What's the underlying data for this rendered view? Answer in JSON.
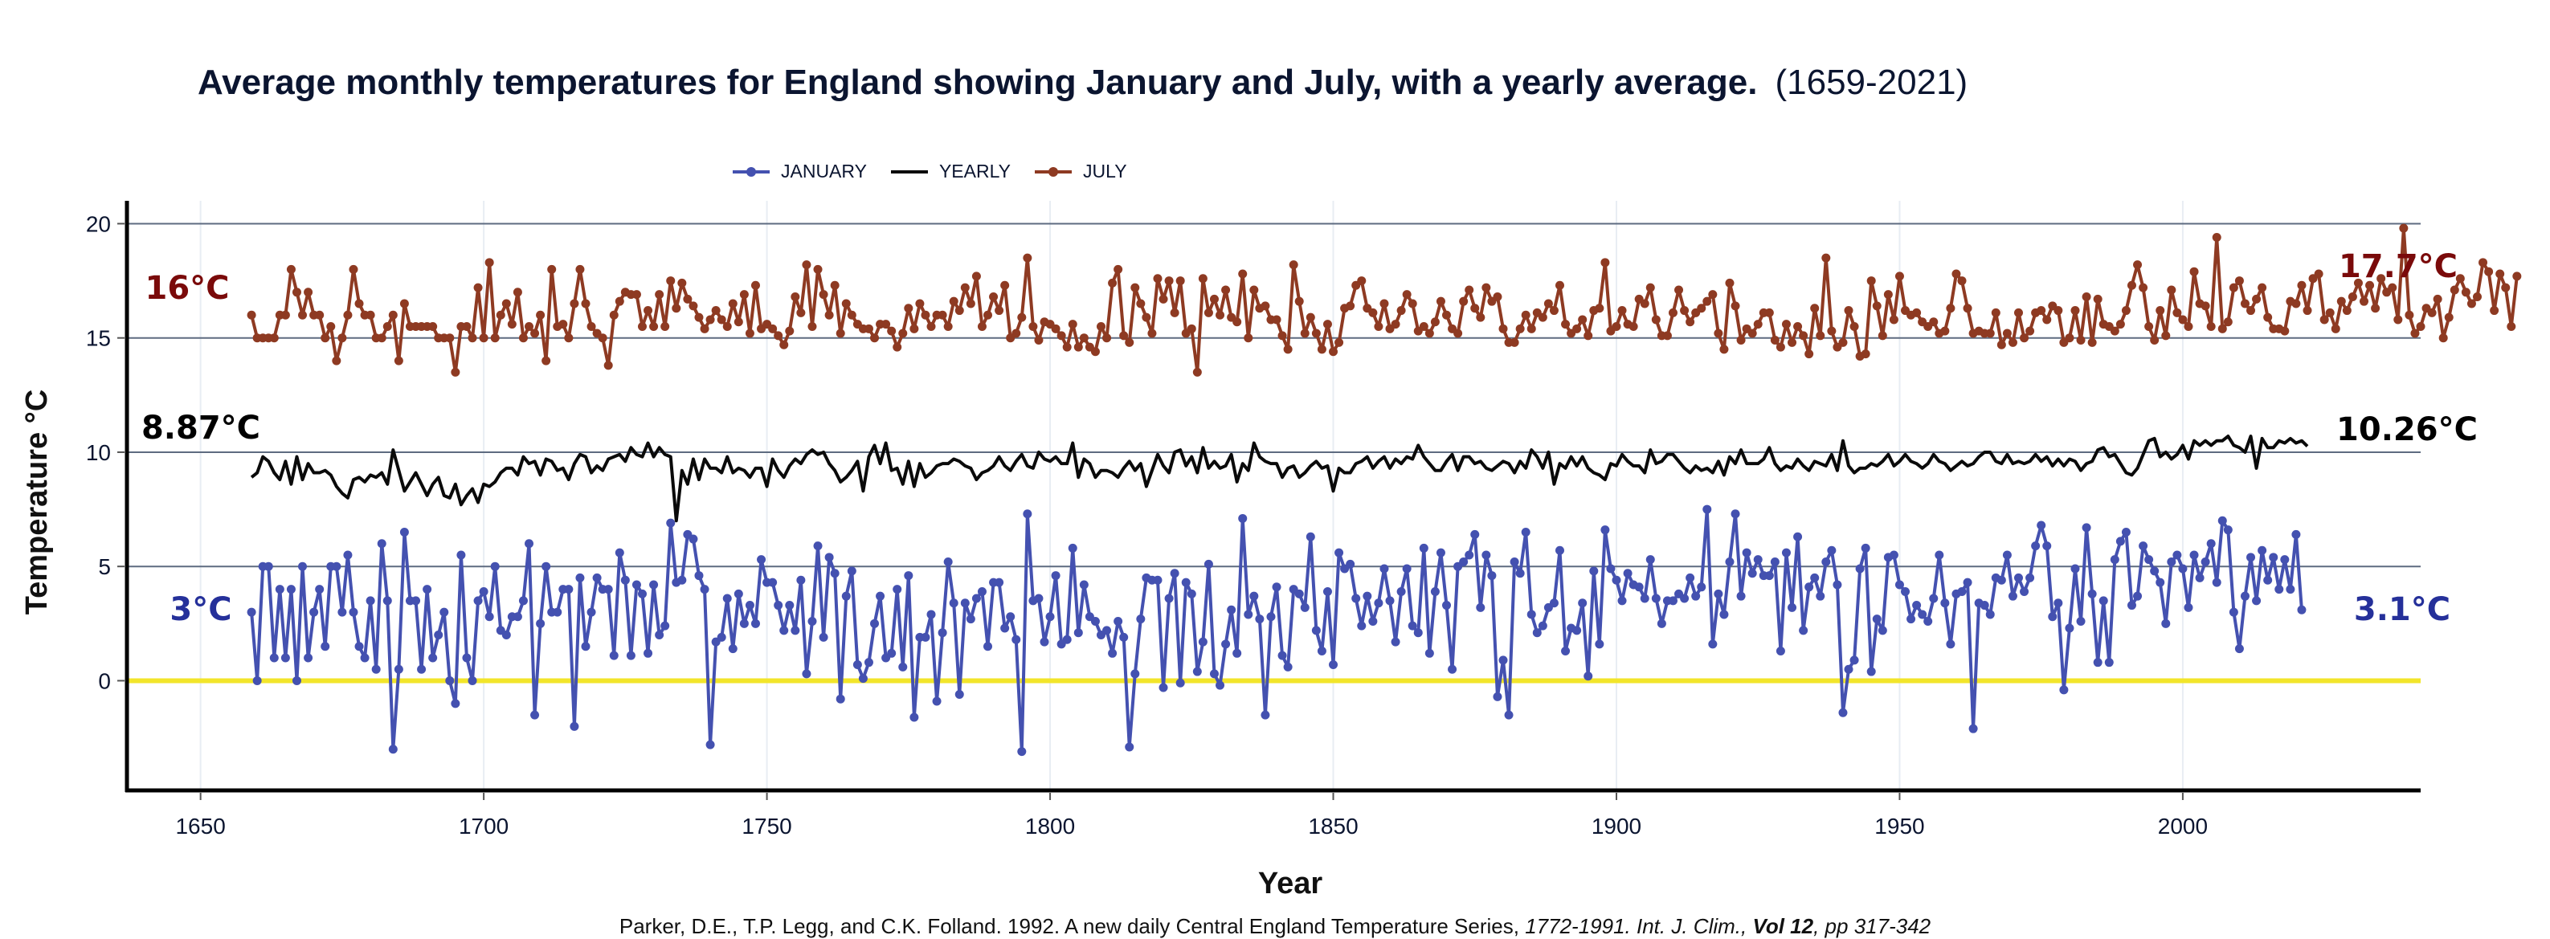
{
  "title": {
    "main": "Average monthly temperatures for England showing January and July, with a yearly average.",
    "range": "(1659-2021)"
  },
  "legend": [
    {
      "key": "january",
      "label": "JANUARY",
      "color": "#4451b0",
      "marker": true
    },
    {
      "key": "yearly",
      "label": "YEARLY",
      "color": "#0a0a0a",
      "marker": false
    },
    {
      "key": "july",
      "label": "JULY",
      "color": "#8e3a22",
      "marker": true
    }
  ],
  "footer": {
    "plain1": "Parker, D.E., T.P. Legg, and C.K. Folland. 1992. A new daily Central England Temperature Series,",
    "italic1": "1772-1991. Int. J. Clim.,",
    "bold": "Vol 12",
    "italic2": ", pp 317-342"
  },
  "chart_data": {
    "type": "line",
    "title": "Average monthly temperatures for England showing January and July, with a yearly average. (1659-2021)",
    "xlabel": "Year",
    "ylabel": "Temperature °C",
    "xlim": [
      1637,
      2042
    ],
    "ylim": [
      -4.8,
      21
    ],
    "xticks": [
      1650,
      1700,
      1750,
      1800,
      1850,
      1900,
      1950,
      2000
    ],
    "yticks": [
      0,
      5,
      10,
      15,
      20
    ],
    "grid": true,
    "zero_line_color": "#f2e52a",
    "legend_position": "top-center",
    "x_start": 1659,
    "x_end": 2021,
    "annotations": [
      {
        "series": "july",
        "side": "left",
        "text": "16°C",
        "color": "#7a0a0a"
      },
      {
        "series": "july",
        "side": "right",
        "text": "17.7°C",
        "color": "#7a0a0a"
      },
      {
        "series": "yearly",
        "side": "left",
        "text": "8.87°C",
        "color": "#000000"
      },
      {
        "series": "yearly",
        "side": "right",
        "text": "10.26°C",
        "color": "#000000"
      },
      {
        "series": "january",
        "side": "left",
        "text": "3°C",
        "color": "#25309a"
      },
      {
        "series": "january",
        "side": "right",
        "text": "3.1°C",
        "color": "#25309a"
      }
    ],
    "series": [
      {
        "name": "JANUARY",
        "key": "january",
        "color": "#4451b0",
        "values": [
          3,
          0,
          5,
          5,
          1,
          4,
          1,
          4,
          0,
          5,
          1,
          3,
          4,
          1.5,
          5,
          5,
          3,
          5.5,
          3,
          1.5,
          1,
          3.5,
          0.5,
          6,
          3.5,
          -3,
          0.5,
          6.5,
          3.5,
          3.5,
          0.5,
          4,
          1,
          2,
          3,
          0,
          -1,
          5.5,
          1,
          0,
          3.5,
          3.9,
          2.8,
          5,
          2.2,
          2,
          2.8,
          2.8,
          3.5,
          6,
          -1.5,
          2.5,
          5,
          3,
          3,
          4,
          4,
          -2,
          4.5,
          1.5,
          3,
          4.5,
          4,
          4,
          1.1,
          5.6,
          4.4,
          1.1,
          4.2,
          3.8,
          1.2,
          4.2,
          2,
          2.4,
          6.9,
          4.3,
          4.4,
          6.4,
          6.2,
          4.6,
          4,
          -2.8,
          1.7,
          1.9,
          3.6,
          1.4,
          3.8,
          2.5,
          3.3,
          2.5,
          5.3,
          4.3,
          4.3,
          3.3,
          2.2,
          3.3,
          2.2,
          4.4,
          0.3,
          2.6,
          5.9,
          1.9,
          5.4,
          4.7,
          -0.8,
          3.7,
          4.8,
          0.7,
          0.1,
          0.8,
          2.5,
          3.7,
          1,
          1.2,
          4,
          0.6,
          4.6,
          -1.6,
          1.9,
          1.9,
          2.9,
          -0.9,
          2.1,
          5.2,
          3.4,
          -0.6,
          3.4,
          2.7,
          3.6,
          3.9,
          1.5,
          4.3,
          4.3,
          2.3,
          2.8,
          1.8,
          -3.1,
          7.3,
          3.5,
          3.6,
          1.7,
          2.8,
          4.6,
          1.6,
          1.8,
          5.8,
          2.1,
          4.2,
          2.8,
          2.6,
          2,
          2.2,
          1.2,
          2.6,
          1.9,
          -2.9,
          0.3,
          2.7,
          4.5,
          4.4,
          4.4,
          -0.3,
          3.6,
          4.7,
          -0.1,
          4.3,
          3.8,
          0.4,
          1.7,
          5.1,
          0.3,
          -0.2,
          1.6,
          3.1,
          1.2,
          7.1,
          2.9,
          3.7,
          2.7,
          -1.5,
          2.8,
          4.1,
          1.1,
          0.6,
          4,
          3.8,
          3.2,
          6.3,
          2.2,
          1.3,
          3.9,
          0.7,
          5.6,
          4.9,
          5.1,
          3.6,
          2.4,
          3.7,
          2.6,
          3.4,
          4.9,
          3.5,
          1.7,
          3.9,
          4.9,
          2.4,
          2.1,
          5.8,
          1.2,
          3.9,
          5.6,
          3.3,
          0.5,
          5,
          5.2,
          5.5,
          6.4,
          3.2,
          5.5,
          4.6,
          -0.7,
          0.9,
          -1.5,
          5.2,
          4.7,
          6.5,
          2.9,
          2.1,
          2.4,
          3.2,
          3.4,
          5.7,
          1.3,
          2.3,
          2.2,
          3.4,
          0.2,
          4.8,
          1.6,
          6.6,
          4.9,
          4.4,
          3.5,
          4.7,
          4.2,
          4.1,
          3.6,
          5.3,
          3.6,
          2.5,
          3.5,
          3.5,
          3.8,
          3.6,
          4.5,
          3.7,
          4.1,
          7.5,
          1.6,
          3.8,
          2.9,
          5.2,
          7.3,
          3.7,
          5.6,
          4.7,
          5.3,
          4.6,
          4.6,
          5.2,
          1.3,
          5.6,
          3.2,
          6.3,
          2.2,
          4.1,
          4.5,
          3.7,
          5.2,
          5.7,
          4.2,
          -1.4,
          0.5,
          0.9,
          4.9,
          5.8,
          0.4,
          2.7,
          2.2,
          5.4,
          5.5,
          4.2,
          3.9,
          2.7,
          3.3,
          2.9,
          2.6,
          3.6,
          5.5,
          3.4,
          1.6,
          3.8,
          3.9,
          4.3,
          -2.1,
          3.4,
          3.3,
          2.9,
          4.5,
          4.4,
          5.5,
          3.7,
          4.5,
          3.9,
          4.5,
          5.9,
          6.8,
          5.9,
          2.8,
          3.4,
          -0.4,
          2.3,
          4.9,
          2.6,
          6.7,
          3.8,
          0.8,
          3.5,
          0.8,
          5.3,
          6.1,
          6.5,
          3.3,
          3.7,
          5.9,
          5.3,
          4.8,
          4.3,
          2.5,
          5.2,
          5.5,
          4.9,
          3.2,
          5.5,
          4.5,
          5.2,
          6,
          4.3,
          7,
          6.6,
          3,
          1.4,
          3.7,
          5.4,
          3.5,
          5.7,
          4.4,
          5.4,
          4,
          5.3,
          4,
          6.4,
          3.1
        ]
      },
      {
        "name": "YEARLY",
        "key": "yearly",
        "color": "#0a0a0a",
        "values": [
          8.9,
          9.1,
          9.8,
          9.6,
          9.1,
          8.8,
          9.6,
          8.6,
          9.8,
          8.8,
          9.5,
          9.1,
          9.1,
          9.2,
          9,
          8.5,
          8.2,
          8,
          8.8,
          8.9,
          8.7,
          9,
          8.9,
          9.1,
          8.6,
          10.1,
          9.2,
          8.3,
          8.7,
          9.1,
          8.6,
          8.1,
          8.6,
          8.9,
          8.1,
          8,
          8.6,
          7.7,
          8.1,
          8.4,
          7.8,
          8.6,
          8.5,
          8.7,
          9.1,
          9.3,
          9.3,
          9,
          9.8,
          9.5,
          9.6,
          9,
          9.7,
          9.6,
          9.2,
          9.3,
          8.8,
          9.5,
          9.9,
          9.8,
          9.1,
          9.4,
          9.2,
          9.7,
          9.8,
          9.9,
          9.6,
          10.2,
          9.9,
          9.8,
          10.4,
          9.8,
          10.2,
          9.9,
          9.8,
          7.0,
          9.2,
          8.6,
          9.7,
          8.8,
          9.7,
          9.3,
          9.3,
          9.1,
          9.8,
          9.1,
          9.3,
          9.2,
          8.9,
          9.3,
          9.3,
          8.5,
          9.7,
          9.2,
          8.9,
          9.4,
          9.7,
          9.5,
          9.9,
          10.1,
          9.9,
          10,
          9.5,
          9.2,
          8.7,
          8.9,
          9.2,
          9.6,
          8.3,
          9.8,
          10.3,
          9.5,
          10.4,
          9.2,
          9.3,
          8.6,
          9.6,
          8.5,
          9.5,
          8.9,
          9.1,
          9.4,
          9.5,
          9.5,
          9.7,
          9.6,
          9.4,
          9.3,
          8.8,
          9.1,
          9.2,
          9.4,
          9.8,
          9.4,
          9.2,
          9.6,
          9.9,
          9.4,
          9.3,
          10,
          9.7,
          9.6,
          9.8,
          9.5,
          9.5,
          10.4,
          8.9,
          9.7,
          9.5,
          8.9,
          9.2,
          9.2,
          9.1,
          8.9,
          9.3,
          9.6,
          9.2,
          9.5,
          8.5,
          9.2,
          9.9,
          9.4,
          9.1,
          10,
          10.1,
          9.4,
          9.8,
          9.1,
          10.2,
          9.3,
          9.6,
          9.3,
          9.4,
          9.9,
          8.7,
          9.5,
          9.2,
          10.4,
          9.8,
          9.6,
          9.5,
          9.5,
          8.9,
          9.3,
          9.4,
          8.9,
          9.1,
          9.4,
          9.6,
          9.3,
          9.4,
          8.3,
          9.3,
          9.1,
          9.1,
          9.5,
          9.6,
          9.8,
          9.3,
          9.6,
          9.8,
          9.3,
          9.7,
          9.5,
          9.8,
          9.7,
          10.3,
          9.8,
          9.5,
          9.2,
          9.2,
          9.6,
          9.9,
          9.2,
          9.8,
          9.8,
          9.5,
          9.6,
          9.3,
          9.2,
          9.4,
          9.6,
          9.5,
          9.1,
          9.6,
          9.3,
          10.1,
          9.8,
          9.3,
          10,
          8.6,
          9.5,
          9.3,
          9.8,
          9.4,
          9.8,
          9.3,
          9.1,
          9.0,
          8.8,
          9.5,
          9.4,
          9.9,
          9.6,
          9.4,
          9.4,
          9.1,
          10.1,
          9.5,
          9.6,
          9.9,
          9.9,
          9.6,
          9.3,
          9.1,
          9.4,
          9.2,
          9.3,
          9.1,
          9.6,
          9,
          9.8,
          9.5,
          10.1,
          9.5,
          9.5,
          9.5,
          9.7,
          10.2,
          9.5,
          9.2,
          9.4,
          9.3,
          9.7,
          9.4,
          9.2,
          9.6,
          9.5,
          9.4,
          9.9,
          9.2,
          10.5,
          9.4,
          9.1,
          9.3,
          9.3,
          9.5,
          9.4,
          9.6,
          9.9,
          9.4,
          9.6,
          9.9,
          9.6,
          9.5,
          9.3,
          9.5,
          9.9,
          9.6,
          9.5,
          9.2,
          9.4,
          9.6,
          9.4,
          9.5,
          9.8,
          10,
          10,
          9.6,
          9.5,
          9.9,
          9.5,
          9.6,
          9.5,
          9.6,
          9.9,
          9.6,
          9.8,
          9.4,
          9.7,
          9.4,
          9.7,
          9.6,
          9.2,
          9.5,
          9.6,
          10.1,
          10.2,
          9.8,
          9.9,
          9.5,
          9.1,
          9.0,
          9.3,
          9.9,
          10.5,
          10.6,
          9.8,
          10,
          9.7,
          9.9,
          10.3,
          9.7,
          10.5,
          10.3,
          10.5,
          10.3,
          10.5,
          10.5,
          10.7,
          10.3,
          10.2,
          10.0,
          10.7,
          9.3,
          10.6,
          10.2,
          10.2,
          10.5,
          10.4,
          10.6,
          10.4,
          10.5,
          10.26
        ]
      },
      {
        "name": "JULY",
        "key": "july",
        "color": "#8e3a22",
        "values": [
          16,
          15,
          15,
          15,
          15,
          16,
          16,
          18,
          17,
          16,
          17,
          16,
          16,
          15,
          15.5,
          14,
          15,
          16,
          18,
          16.5,
          16,
          16,
          15,
          15,
          15.5,
          16,
          14,
          16.5,
          15.5,
          15.5,
          15.5,
          15.5,
          15.5,
          15,
          15,
          15,
          13.5,
          15.5,
          15.5,
          15,
          17.2,
          15,
          18.3,
          15,
          16,
          16.5,
          15.6,
          17,
          15,
          15.5,
          15.2,
          16,
          14,
          18,
          15.5,
          15.6,
          15,
          16.5,
          18,
          16.5,
          15.5,
          15.2,
          15,
          13.8,
          16,
          16.6,
          17,
          16.9,
          16.9,
          15.5,
          16.2,
          15.5,
          16.9,
          15.5,
          17.5,
          16.3,
          17.4,
          16.7,
          16.4,
          15.9,
          15.4,
          15.8,
          16.2,
          15.8,
          15.5,
          16.5,
          15.7,
          16.9,
          15.2,
          17.3,
          15.4,
          15.6,
          15.4,
          15.1,
          14.7,
          15.3,
          16.8,
          16.1,
          18.2,
          15.5,
          18,
          16.9,
          16,
          17.3,
          15.2,
          16.5,
          16,
          15.6,
          15.4,
          15.4,
          15,
          15.6,
          15.6,
          15.3,
          14.6,
          15.2,
          16.3,
          15.4,
          16.5,
          16,
          15.5,
          16,
          16,
          15.5,
          16.6,
          16.2,
          17.2,
          16.5,
          17.7,
          15.5,
          16,
          16.8,
          16.2,
          17.3,
          15,
          15.2,
          15.9,
          18.5,
          15.5,
          14.9,
          15.7,
          15.6,
          15.4,
          15.1,
          14.6,
          15.6,
          14.6,
          15,
          14.6,
          14.4,
          15.5,
          15,
          17.4,
          18,
          15.1,
          14.8,
          17.2,
          16.5,
          15.9,
          15.2,
          17.6,
          16.7,
          17.5,
          16.1,
          17.5,
          15.2,
          15.4,
          13.5,
          17.6,
          16.1,
          16.7,
          16,
          17.1,
          15.9,
          15.7,
          17.8,
          15,
          17.1,
          16.3,
          16.4,
          15.8,
          15.8,
          15.1,
          14.5,
          18.2,
          16.6,
          15.2,
          15.9,
          15.2,
          14.5,
          15.6,
          14.4,
          14.8,
          16.3,
          16.4,
          17.3,
          17.5,
          16.3,
          16.1,
          15.5,
          16.5,
          15.4,
          15.6,
          16.2,
          16.9,
          16.5,
          15.3,
          15.5,
          15.2,
          15.7,
          16.6,
          16,
          15.4,
          15.2,
          16.6,
          17.1,
          16.3,
          15.9,
          17.2,
          16.6,
          16.8,
          15.4,
          14.8,
          14.8,
          15.4,
          16,
          15.4,
          16.1,
          15.9,
          16.5,
          16.2,
          17.3,
          15.6,
          15.2,
          15.4,
          15.8,
          15.1,
          16.2,
          16.3,
          18.3,
          15.3,
          15.5,
          16.2,
          15.6,
          15.5,
          16.7,
          16.5,
          17.2,
          15.8,
          15.1,
          15.1,
          16.1,
          17.1,
          16.2,
          15.7,
          16.1,
          16.3,
          16.6,
          16.9,
          15.2,
          14.5,
          17.4,
          16.4,
          14.9,
          15.4,
          15.2,
          15.6,
          16.1,
          16.1,
          14.9,
          14.6,
          15.6,
          14.8,
          15.5,
          15.1,
          14.3,
          16.3,
          15.1,
          18.5,
          15.3,
          14.6,
          14.8,
          16.2,
          15.5,
          14.2,
          14.3,
          17.5,
          16.4,
          15.1,
          16.9,
          15.8,
          17.7,
          16.2,
          16,
          16.1,
          15.7,
          15.5,
          15.7,
          15.2,
          15.3,
          16.3,
          17.8,
          17.5,
          16.3,
          15.2,
          15.3,
          15.2,
          15.2,
          16.1,
          14.7,
          15.2,
          14.8,
          16.1,
          15,
          15.3,
          16.1,
          16.2,
          15.8,
          16.4,
          16.2,
          14.8,
          15,
          16.2,
          14.9,
          16.8,
          14.8,
          16.7,
          15.6,
          15.5,
          15.3,
          15.6,
          16.2,
          17.3,
          18.2,
          17.2,
          15.5,
          14.9,
          16.2,
          15.1,
          17.1,
          16.1,
          15.8,
          15.5,
          17.9,
          16.5,
          16.4,
          15.5,
          19.4,
          15.4,
          15.7,
          17.2,
          17.5,
          16.5,
          16.2,
          16.7,
          17.2,
          15.9,
          15.4,
          15.4,
          15.3,
          16.6,
          16.5,
          17.3,
          16.2,
          17.6,
          17.8,
          15.8,
          16.1,
          15.4,
          16.6,
          16.2,
          16.8,
          17.4,
          16.6,
          17.3,
          16.3,
          17.6,
          17,
          17.2,
          15.8,
          19.8,
          16,
          15.2,
          15.5,
          16.3,
          16.1,
          16.7,
          15,
          15.9,
          17.1,
          17.6,
          17,
          16.5,
          16.8,
          18.3,
          17.9,
          16.2,
          17.8,
          17.2,
          15.5,
          17.7
        ]
      }
    ]
  }
}
